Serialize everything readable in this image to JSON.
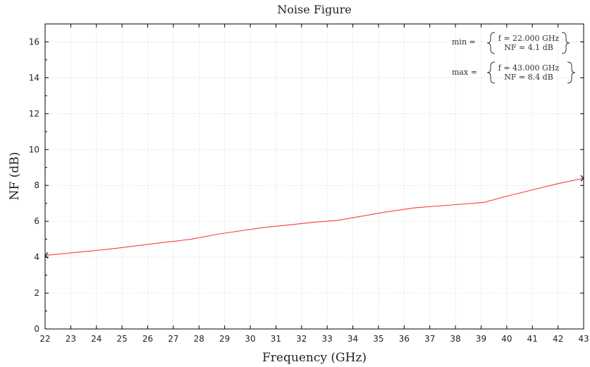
{
  "chart_data": {
    "type": "line",
    "title": "Noise Figure",
    "xlabel": "Frequency (GHz)",
    "ylabel": "NF (dB)",
    "xlim": [
      22,
      43
    ],
    "ylim": [
      0,
      17
    ],
    "xticks": [
      "22",
      "23",
      "24",
      "25",
      "26",
      "27",
      "28",
      "29",
      "30",
      "31",
      "32",
      "33",
      "34",
      "35",
      "36",
      "37",
      "38",
      "39",
      "40",
      "41",
      "42",
      "43"
    ],
    "yticks": [
      "0",
      "2",
      "4",
      "6",
      "8",
      "10",
      "12",
      "14",
      "16"
    ],
    "grid": true,
    "series": [
      {
        "color": "#ff3b3b",
        "x": [
          22,
          24.5,
          26.5,
          27.7,
          28.8,
          30.5,
          31.5,
          32.5,
          33.4,
          34.2,
          35.2,
          36.4,
          37.3,
          39.1,
          40,
          41,
          42,
          43
        ],
        "y": [
          4.1,
          4.45,
          4.8,
          5.0,
          5.3,
          5.65,
          5.8,
          5.95,
          6.05,
          6.25,
          6.5,
          6.75,
          6.85,
          7.05,
          7.4,
          7.75,
          8.1,
          8.4
        ]
      }
    ],
    "annotations": {
      "min": {
        "label": "min =",
        "f": "f = 22.000 GHz",
        "nf": "NF = 4.1 dB",
        "x": 22,
        "y": 4.1
      },
      "max": {
        "label": "max =",
        "f": "f = 43.000 GHz",
        "nf": "NF = 8.4 dB",
        "x": 43,
        "y": 8.4
      }
    }
  }
}
